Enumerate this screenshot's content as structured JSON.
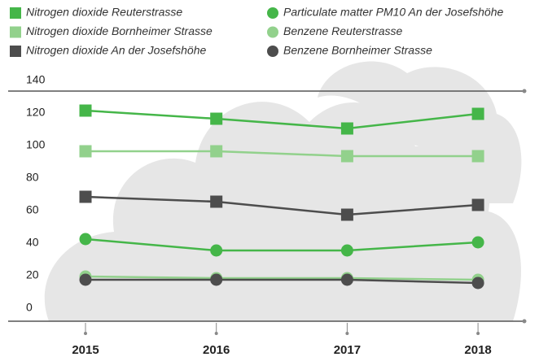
{
  "chart_data": {
    "type": "line",
    "categories": [
      "2015",
      "2016",
      "2017",
      "2018"
    ],
    "ylim": [
      0,
      140
    ],
    "yticks": [
      0,
      20,
      40,
      60,
      80,
      100,
      120,
      140
    ],
    "series": [
      {
        "name": "Nitrogen dioxide Reuterstrasse",
        "color": "#45b649",
        "marker": "square",
        "values": [
          128,
          123,
          117,
          126
        ]
      },
      {
        "name": "Nitrogen dioxide Bornheimer Strasse",
        "color": "#92d18c",
        "marker": "square",
        "values": [
          103,
          103,
          100,
          100
        ]
      },
      {
        "name": "Nitrogen dioxide An der Josefshöhe",
        "color": "#4d4d4d",
        "marker": "square",
        "values": [
          75,
          72,
          64,
          70
        ]
      },
      {
        "name": "Particulate matter PM10 An der Josefshöhe",
        "color": "#45b649",
        "marker": "circle",
        "values": [
          49,
          42,
          42,
          47
        ]
      },
      {
        "name": "Benzene Reuterstrasse",
        "color": "#92d18c",
        "marker": "circle",
        "values": [
          26,
          25,
          25,
          24
        ]
      },
      {
        "name": "Benzene Bornheimer Strasse",
        "color": "#4d4d4d",
        "marker": "circle",
        "values": [
          24,
          24,
          24,
          22
        ]
      }
    ]
  }
}
